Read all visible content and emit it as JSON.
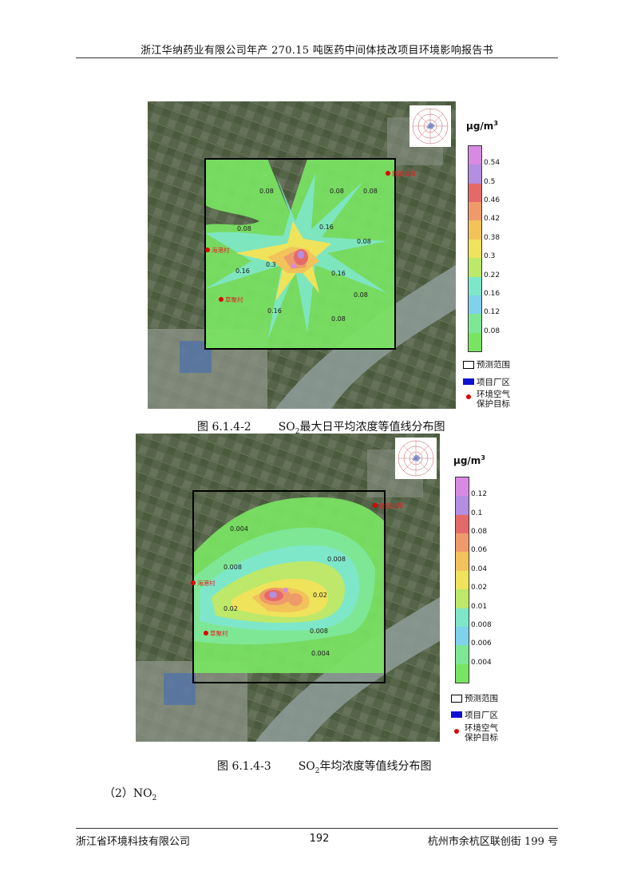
{
  "header": {
    "title": "浙江华纳药业有限公司年产 270.15 吨医药中间体技改项目环境影响报告书"
  },
  "footer": {
    "company": "浙江省环境科技有限公司",
    "page": "192",
    "address": "杭州市余杭区联创街 199 号"
  },
  "colors": {
    "map_bg": "#4d5a3e",
    "legend_border": "#333333"
  },
  "figure1": {
    "caption_num": "图 6.1.4-2",
    "caption_pre": "SO",
    "caption_sub": "2",
    "caption_post": "最大日平均浓度等值线分布图",
    "unit_label": "μg/m",
    "unit_sup": "3",
    "legend_ticks": [
      "0.54",
      "0.5",
      "0.46",
      "0.42",
      "0.38",
      "0.3",
      "0.22",
      "0.16",
      "0.12",
      "0.08"
    ],
    "legend_colors": [
      "#d78ae2",
      "#b48ee0",
      "#e46a6a",
      "#ef9a6a",
      "#f2c35a",
      "#efe35c",
      "#bde86a",
      "#7ee7c9",
      "#7fd2ea",
      "#7ee796",
      "#79e463"
    ],
    "contour_labels": [
      "0.08",
      "0.08",
      "0.08",
      "0.08",
      "0.08",
      "0.16",
      "0.16",
      "0.16",
      "0.16",
      "0.3",
      "0.08",
      "0.08"
    ],
    "place_labels": [
      "雅丽公寓",
      "海港村",
      "草聚村"
    ],
    "legend_items": [
      {
        "icon": "prediction-range-icon",
        "label": "预测范围"
      },
      {
        "icon": "project-site-icon",
        "label": "项目厂区"
      },
      {
        "icon": "protection-target-icon",
        "label": "环境空气\n保护目标"
      }
    ]
  },
  "figure2": {
    "caption_num": "图 6.1.4-3",
    "caption_pre": "SO",
    "caption_sub": "2",
    "caption_post": "年均浓度等值线分布图",
    "unit_label": "μg/m",
    "unit_sup": "3",
    "legend_ticks": [
      "0.12",
      "0.1",
      "0.08",
      "0.06",
      "0.04",
      "0.02",
      "0.01",
      "0.008",
      "0.006",
      "0.004"
    ],
    "legend_colors": [
      "#d78ae2",
      "#b48ee0",
      "#e46a6a",
      "#ef9a6a",
      "#f2c35a",
      "#efe35c",
      "#bde86a",
      "#7ee7c9",
      "#7fd2ea",
      "#7ee796",
      "#79e463"
    ],
    "contour_labels": [
      "0.004",
      "0.008",
      "0.008",
      "0.02",
      "0.02",
      "0.008",
      "0.004"
    ],
    "place_labels": [
      "雅丽公寓",
      "海港村",
      "草聚村"
    ],
    "legend_items": [
      {
        "icon": "prediction-range-icon",
        "label": "预测范围"
      },
      {
        "icon": "project-site-icon",
        "label": "项目厂区"
      },
      {
        "icon": "protection-target-icon",
        "label": "环境空气\n保护目标"
      }
    ]
  },
  "section": {
    "label_pre": "（2）NO",
    "label_sub": "2"
  }
}
